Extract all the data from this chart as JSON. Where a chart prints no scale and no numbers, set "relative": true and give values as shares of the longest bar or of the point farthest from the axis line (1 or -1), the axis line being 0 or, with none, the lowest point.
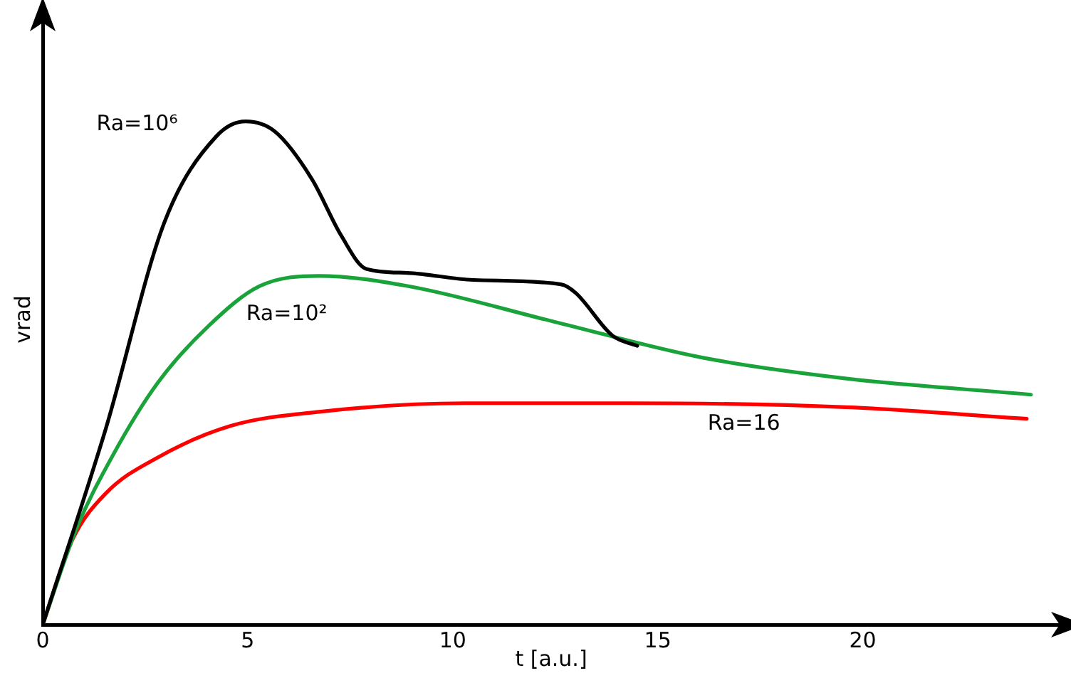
{
  "chart_data": {
    "type": "line",
    "relative": true,
    "xlabel": "t [a.u.]",
    "ylabel": "vrad",
    "xlim": [
      0,
      24.8
    ],
    "xticks": [
      0,
      5,
      10,
      15,
      20
    ],
    "grid": false,
    "legend": false,
    "marker": "none",
    "line_style": "solid",
    "series": [
      {
        "name": "Ra=10⁶",
        "color": "#000000",
        "x": [
          0,
          1.54,
          2.97,
          4.23,
          4.95,
          5.66,
          6.56,
          7.28,
          7.89,
          8.89,
          10.5,
          12.65,
          13.0,
          13.9,
          14.5
        ],
        "values": [
          0,
          0.39,
          0.8,
          0.97,
          1.0,
          0.98,
          0.886,
          0.773,
          0.707,
          0.699,
          0.685,
          0.676,
          0.659,
          0.574,
          0.554
        ]
      },
      {
        "name": "Ra=10²",
        "color": "#1aa33a",
        "x": [
          0,
          0.82,
          1.72,
          2.8,
          4.05,
          5.3,
          6.74,
          8.89,
          12.47,
          16.06,
          19.6,
          24.1
        ],
        "values": [
          0,
          0.19,
          0.338,
          0.48,
          0.594,
          0.673,
          0.693,
          0.673,
          0.602,
          0.531,
          0.489,
          0.457
        ]
      },
      {
        "name": "Ra=16",
        "color": "#ff0000",
        "x": [
          0,
          0.72,
          1.54,
          2.8,
          4.59,
          6.74,
          10.3,
          14.3,
          19.6,
          24.0
        ],
        "values": [
          0,
          0.168,
          0.261,
          0.332,
          0.395,
          0.423,
          0.44,
          0.44,
          0.432,
          0.409
        ]
      }
    ]
  }
}
